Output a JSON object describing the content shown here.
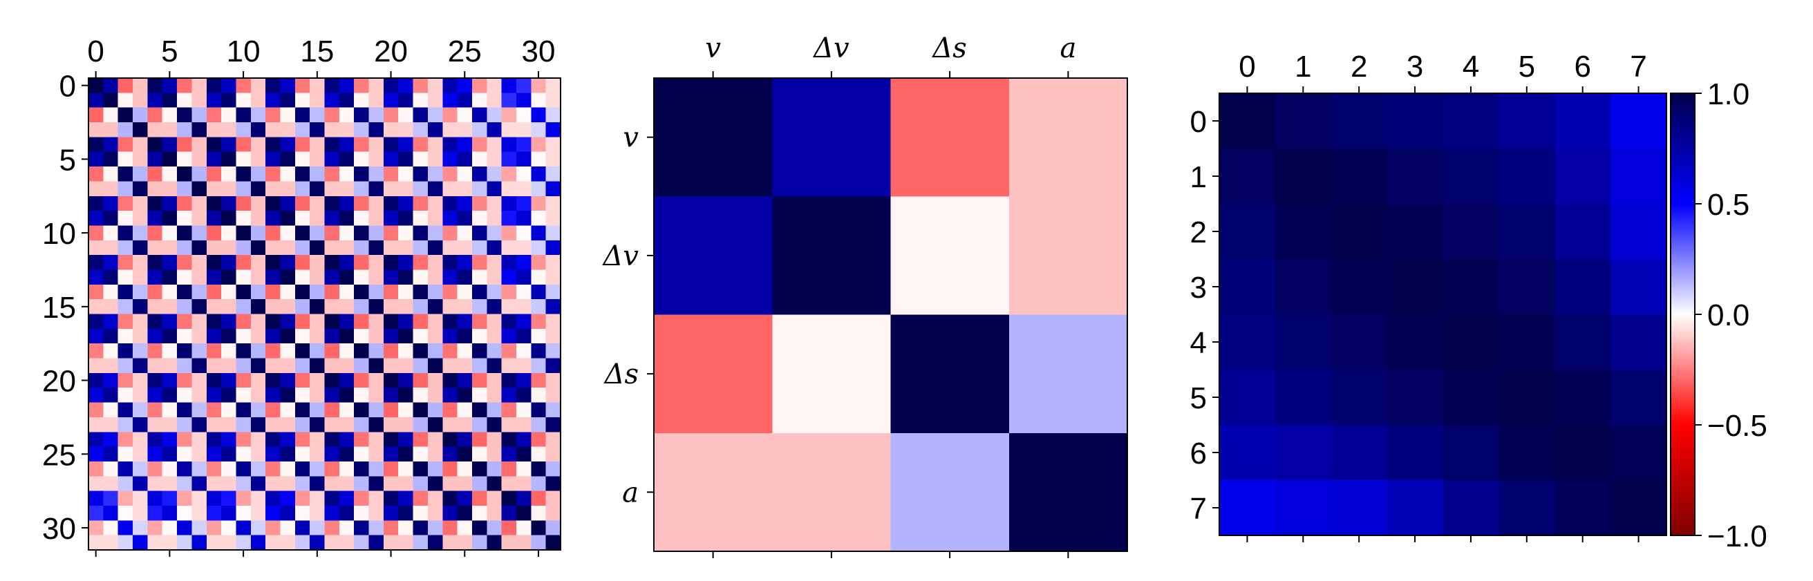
{
  "chart_data": [
    {
      "type": "heatmap",
      "title": "",
      "xlabel": "",
      "ylabel": "",
      "x_tick_labels": [
        "0",
        "5",
        "10",
        "15",
        "20",
        "25",
        "30"
      ],
      "y_tick_labels": [
        "0",
        "5",
        "10",
        "15",
        "20",
        "25",
        "30"
      ],
      "size": 32,
      "block_size": 4,
      "block_pattern_note": "32x32 matrix composed of 8x8 blocks of 4x4 sub-matrices; each sub-block shows the variable-correlation pattern scaled by the block strength",
      "block_strength": [
        [
          1.0,
          0.95,
          0.9,
          0.88,
          0.85,
          0.8,
          0.72,
          0.55
        ],
        [
          0.95,
          1.0,
          0.97,
          0.94,
          0.9,
          0.86,
          0.75,
          0.6
        ],
        [
          0.9,
          0.97,
          1.0,
          0.98,
          0.95,
          0.9,
          0.8,
          0.62
        ],
        [
          0.88,
          0.94,
          0.98,
          1.0,
          0.98,
          0.95,
          0.86,
          0.7
        ],
        [
          0.85,
          0.9,
          0.95,
          0.98,
          1.0,
          0.98,
          0.92,
          0.82
        ],
        [
          0.8,
          0.86,
          0.9,
          0.95,
          0.98,
          1.0,
          0.97,
          0.9
        ],
        [
          0.72,
          0.75,
          0.8,
          0.86,
          0.92,
          0.97,
          1.0,
          0.96
        ],
        [
          0.55,
          0.6,
          0.62,
          0.7,
          0.82,
          0.9,
          0.96,
          1.0
        ]
      ],
      "sub_block": [
        [
          1.0,
          0.75,
          -0.3,
          -0.12
        ],
        [
          0.75,
          1.0,
          -0.02,
          -0.12
        ],
        [
          -0.3,
          -0.02,
          1.0,
          0.15
        ],
        [
          -0.12,
          -0.12,
          0.15,
          1.0
        ]
      ],
      "vmin": -1.0,
      "vmax": 1.0
    },
    {
      "type": "heatmap",
      "title": "",
      "xlabel": "",
      "ylabel": "",
      "categories": [
        "v",
        "Δv",
        "Δs",
        "a"
      ],
      "values": [
        [
          1.0,
          0.75,
          -0.3,
          -0.12
        ],
        [
          0.75,
          1.0,
          -0.02,
          -0.12
        ],
        [
          -0.3,
          -0.02,
          1.0,
          0.15
        ],
        [
          -0.12,
          -0.12,
          0.15,
          1.0
        ]
      ],
      "vmin": -1.0,
      "vmax": 1.0
    },
    {
      "type": "heatmap",
      "title": "",
      "xlabel": "",
      "ylabel": "",
      "x_tick_labels": [
        "0",
        "1",
        "2",
        "3",
        "4",
        "5",
        "6",
        "7"
      ],
      "y_tick_labels": [
        "0",
        "1",
        "2",
        "3",
        "4",
        "5",
        "6",
        "7"
      ],
      "values": [
        [
          1.0,
          0.95,
          0.9,
          0.88,
          0.85,
          0.8,
          0.72,
          0.55
        ],
        [
          0.95,
          1.0,
          0.97,
          0.94,
          0.9,
          0.86,
          0.75,
          0.6
        ],
        [
          0.9,
          0.97,
          1.0,
          0.98,
          0.95,
          0.9,
          0.8,
          0.62
        ],
        [
          0.88,
          0.94,
          0.98,
          1.0,
          0.98,
          0.95,
          0.86,
          0.7
        ],
        [
          0.85,
          0.9,
          0.95,
          0.98,
          1.0,
          0.98,
          0.92,
          0.82
        ],
        [
          0.8,
          0.86,
          0.9,
          0.95,
          0.98,
          1.0,
          0.97,
          0.9
        ],
        [
          0.72,
          0.75,
          0.8,
          0.86,
          0.92,
          0.97,
          1.0,
          0.96
        ],
        [
          0.55,
          0.6,
          0.62,
          0.7,
          0.82,
          0.9,
          0.96,
          1.0
        ]
      ],
      "vmin": -1.0,
      "vmax": 1.0,
      "colorbar": {
        "ticks": [
          1.0,
          0.5,
          0.0,
          -0.5,
          -1.0
        ],
        "tick_labels": [
          "1.0",
          "0.5",
          "0.0",
          "−0.5",
          "−1.0"
        ]
      }
    }
  ],
  "colormap": {
    "name": "seismic",
    "stops": [
      {
        "v": -1.0,
        "color": "#800000"
      },
      {
        "v": -0.5,
        "color": "#ff0000"
      },
      {
        "v": 0.0,
        "color": "#ffffff"
      },
      {
        "v": 0.5,
        "color": "#0000ff"
      },
      {
        "v": 1.0,
        "color": "#00004c"
      }
    ]
  }
}
